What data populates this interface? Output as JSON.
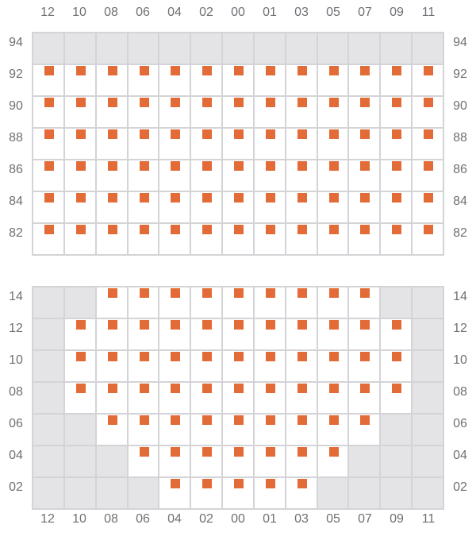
{
  "colors": {
    "seat": "#e36b37",
    "unavailable": "#e4e4e6",
    "border": "#d4d4d8",
    "label": "#6f6f76"
  },
  "column_labels": [
    "12",
    "10",
    "08",
    "06",
    "04",
    "02",
    "00",
    "01",
    "03",
    "05",
    "07",
    "09",
    "11"
  ],
  "sections": [
    {
      "rows": [
        {
          "label": "94",
          "cells": "0000000000000"
        },
        {
          "label": "92",
          "cells": "1111111111111"
        },
        {
          "label": "90",
          "cells": "1111111111111"
        },
        {
          "label": "88",
          "cells": "1111111111111"
        },
        {
          "label": "86",
          "cells": "1111111111111"
        },
        {
          "label": "84",
          "cells": "1111111111111"
        },
        {
          "label": "82",
          "cells": "1111111111111"
        }
      ]
    },
    {
      "rows": [
        {
          "label": "14",
          "cells": "0011111111100"
        },
        {
          "label": "12",
          "cells": "0111111111110"
        },
        {
          "label": "10",
          "cells": "0111111111110"
        },
        {
          "label": "08",
          "cells": "0111111111110"
        },
        {
          "label": "06",
          "cells": "0011111111100"
        },
        {
          "label": "04",
          "cells": "0001111111000"
        },
        {
          "label": "02",
          "cells": "0000111110000"
        }
      ]
    }
  ]
}
